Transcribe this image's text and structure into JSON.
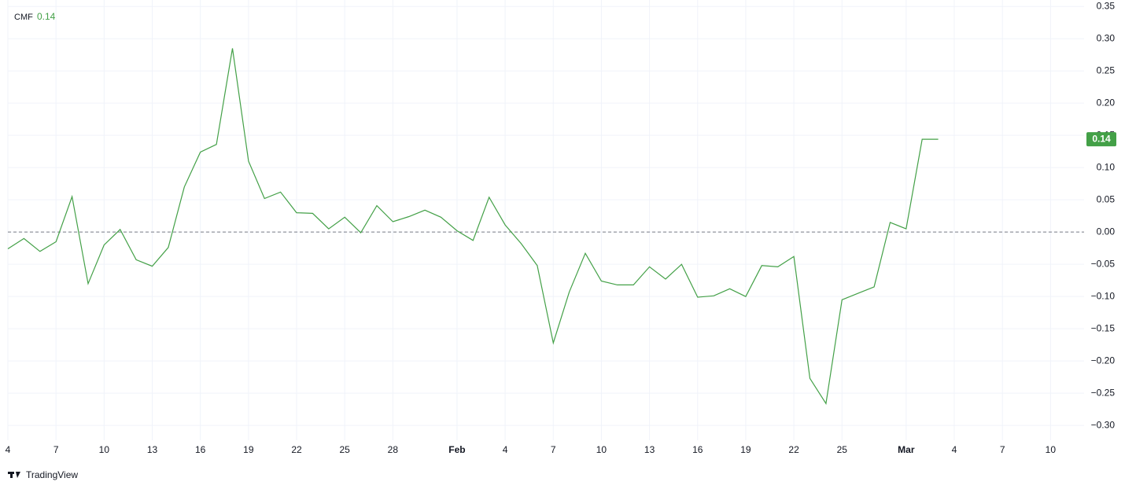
{
  "chart_data": {
    "type": "line",
    "categories": [
      "4",
      null,
      null,
      "7",
      null,
      null,
      "10",
      null,
      null,
      "13",
      null,
      null,
      "16",
      null,
      null,
      "19",
      null,
      null,
      "22",
      null,
      null,
      "25",
      null,
      null,
      "28",
      null,
      null,
      null,
      "Feb",
      null,
      null,
      "4",
      null,
      null,
      "7",
      null,
      null,
      "10",
      null,
      null,
      "13",
      null,
      null,
      "16",
      null,
      null,
      "19",
      null,
      null,
      "22",
      null,
      null,
      "25",
      null,
      null,
      null,
      "Mar",
      null,
      null,
      "4",
      null,
      null,
      "7",
      null,
      null,
      "10"
    ],
    "series": [
      {
        "name": "CMF",
        "color": "#43a047",
        "values": [
          -0.026,
          -0.01,
          -0.03,
          -0.015,
          0.055,
          -0.08,
          -0.02,
          0.004,
          -0.043,
          -0.053,
          -0.024,
          0.07,
          0.124,
          0.136,
          0.285,
          0.11,
          0.052,
          0.062,
          0.03,
          0.029,
          0.005,
          0.023,
          -0.001,
          0.041,
          0.016,
          0.024,
          0.034,
          0.023,
          0.002,
          -0.013,
          0.054,
          0.011,
          -0.018,
          -0.052,
          -0.172,
          -0.093,
          -0.033,
          -0.076,
          -0.082,
          -0.082,
          -0.054,
          -0.073,
          -0.05,
          -0.101,
          -0.099,
          -0.088,
          -0.1,
          -0.052,
          -0.054,
          -0.038,
          -0.227,
          -0.266,
          -0.105,
          -0.095,
          -0.085,
          0.015,
          0.005,
          0.144,
          0.144,
          null,
          null,
          null,
          null,
          null,
          null,
          null
        ],
        "value_labels": [
          null,
          null,
          null,
          null,
          null,
          null,
          null,
          null,
          null,
          null,
          null,
          null,
          null,
          null,
          null,
          null,
          null,
          null,
          null,
          null,
          null,
          null,
          null,
          null,
          null,
          null,
          null,
          null,
          null,
          null,
          null,
          null,
          null,
          null,
          null,
          null,
          null,
          null,
          null,
          null,
          null,
          null,
          null,
          null,
          null,
          null,
          null,
          null,
          null,
          null,
          null,
          null,
          null,
          null,
          null,
          null,
          null,
          null,
          "0.14",
          null,
          null,
          null,
          null,
          null,
          null,
          null
        ]
      }
    ],
    "ylim": [
      -0.323,
      0.36
    ],
    "yticks": [
      {
        "value": 0.35,
        "label": "0.35"
      },
      {
        "value": 0.3,
        "label": "0.30"
      },
      {
        "value": 0.25,
        "label": "0.25"
      },
      {
        "value": 0.2,
        "label": "0.20"
      },
      {
        "value": 0.15,
        "label": "0.15"
      },
      {
        "value": 0.1,
        "label": "0.10"
      },
      {
        "value": 0.05,
        "label": "0.05"
      },
      {
        "value": 0,
        "label": "0.00"
      },
      {
        "value": -0.05,
        "label": "−0.05"
      },
      {
        "value": -0.1,
        "label": "−0.10"
      },
      {
        "value": -0.15,
        "label": "−0.15"
      },
      {
        "value": -0.2,
        "label": "−0.20"
      },
      {
        "value": -0.25,
        "label": "−0.25"
      },
      {
        "value": -0.3,
        "label": "−0.30"
      }
    ],
    "grid": true,
    "watermark": "TradingView"
  }
}
